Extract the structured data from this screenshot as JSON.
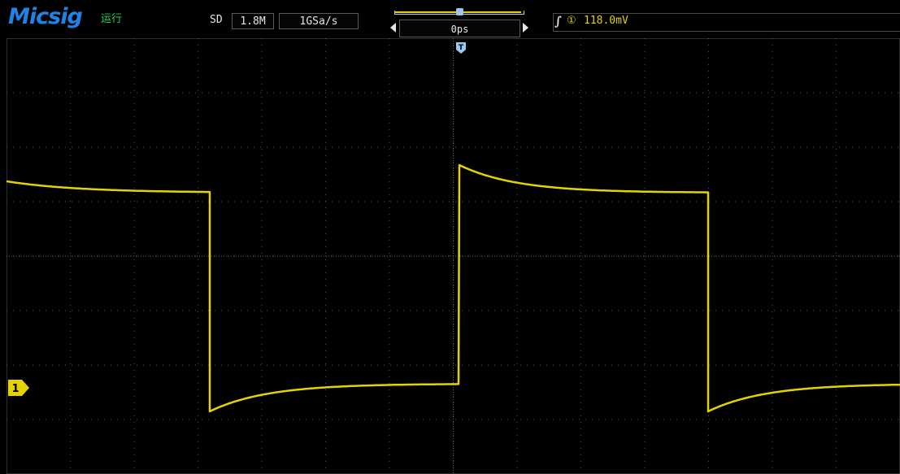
{
  "brand": "Micsig",
  "run_status": "运行",
  "acq_mode": "SD",
  "memory_depth": "1.8M",
  "sample_rate": "1GSa/s",
  "time_offset": "0ps",
  "trigger": {
    "edge_symbol": "∫",
    "source_symbol": "①",
    "level": "118.0mV"
  },
  "channel_marker": "1",
  "trigger_position_marker": "T",
  "colors": {
    "channel1": "#e6d200",
    "brand": "#1e82e6",
    "run": "#1ed25a",
    "grid": "#6a6a6a",
    "frame": "#5a5a5a"
  },
  "waveform": {
    "channel": "1",
    "shape": "square wave with exponential settling (RC response)"
  }
}
